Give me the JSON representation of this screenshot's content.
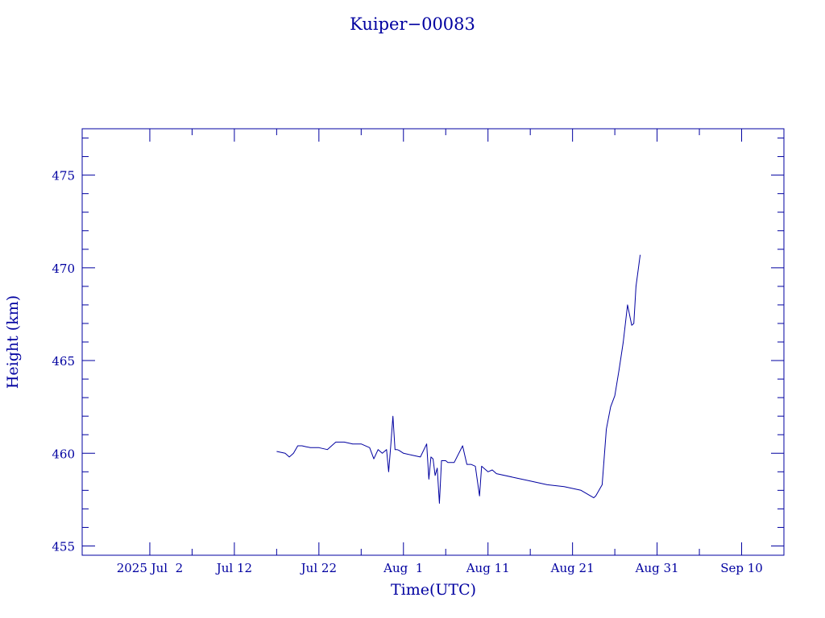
{
  "chart_data": {
    "type": "line",
    "title": "Kuiper−00083",
    "xlabel": "Time(UTC)",
    "ylabel": "Height (km)",
    "x_axis": {
      "type": "date",
      "range": [
        "2025-06-24",
        "2025-09-15"
      ],
      "ticks": [
        {
          "date": "2025-07-02",
          "label": "2025 Jul  2"
        },
        {
          "date": "2025-07-12",
          "label": "Jul 12"
        },
        {
          "date": "2025-07-22",
          "label": "Jul 22"
        },
        {
          "date": "2025-08-01",
          "label": "Aug  1"
        },
        {
          "date": "2025-08-11",
          "label": "Aug 11"
        },
        {
          "date": "2025-08-21",
          "label": "Aug 21"
        },
        {
          "date": "2025-08-31",
          "label": "Aug 31"
        },
        {
          "date": "2025-09-10",
          "label": "Sep 10"
        }
      ]
    },
    "y_axis": {
      "range": [
        454.5,
        477.5
      ],
      "ticks": [
        455,
        460,
        465,
        470,
        475
      ],
      "minor_step": 1
    },
    "colors": {
      "line": "#0000a0",
      "frame": "#0000a0",
      "text": "#0000a0",
      "background": "#ffffff"
    },
    "grid": false,
    "series": [
      {
        "x": [
          "2025-07-17T00:00",
          "2025-07-18T00:00",
          "2025-07-18T12:00",
          "2025-07-19T00:00",
          "2025-07-19T12:00",
          "2025-07-20T00:00",
          "2025-07-20T12:00",
          "2025-07-21T00:00",
          "2025-07-22T00:00",
          "2025-07-23T00:00",
          "2025-07-24T00:00",
          "2025-07-25T00:00",
          "2025-07-26T00:00",
          "2025-07-27T00:00",
          "2025-07-28T00:00",
          "2025-07-28T12:00",
          "2025-07-29T00:00",
          "2025-07-29T12:00",
          "2025-07-30T00:00",
          "2025-07-30T06:00",
          "2025-07-30T12:00",
          "2025-07-30T18:00",
          "2025-07-31T00:00",
          "2025-07-31T06:00",
          "2025-07-31T12:00",
          "2025-08-01T00:00",
          "2025-08-02T00:00",
          "2025-08-03T00:00",
          "2025-08-03T18:00",
          "2025-08-04T00:00",
          "2025-08-04T06:00",
          "2025-08-04T12:00",
          "2025-08-04T18:00",
          "2025-08-05T00:00",
          "2025-08-05T06:00",
          "2025-08-05T12:00",
          "2025-08-05T18:00",
          "2025-08-06T00:00",
          "2025-08-06T06:00",
          "2025-08-07T00:00",
          "2025-08-08T00:00",
          "2025-08-08T12:00",
          "2025-08-09T00:00",
          "2025-08-09T12:00",
          "2025-08-10T00:00",
          "2025-08-10T06:00",
          "2025-08-10T12:00",
          "2025-08-11T00:00",
          "2025-08-11T12:00",
          "2025-08-12T00:00",
          "2025-08-14T00:00",
          "2025-08-16T00:00",
          "2025-08-18T00:00",
          "2025-08-20T00:00",
          "2025-08-22T00:00",
          "2025-08-23T12:00",
          "2025-08-23T18:00",
          "2025-08-24T12:00",
          "2025-08-25T00:00",
          "2025-08-25T12:00",
          "2025-08-26T00:00",
          "2025-08-26T12:00",
          "2025-08-27T00:00",
          "2025-08-27T12:00",
          "2025-08-28T00:00",
          "2025-08-28T06:00",
          "2025-08-28T12:00",
          "2025-08-29T00:00"
        ],
        "y": [
          460.1,
          460.0,
          459.8,
          460.0,
          460.4,
          460.4,
          460.35,
          460.3,
          460.3,
          460.2,
          460.6,
          460.6,
          460.5,
          460.5,
          460.3,
          459.7,
          460.2,
          460.0,
          460.2,
          459.0,
          460.4,
          462.0,
          460.2,
          460.2,
          460.15,
          460.0,
          459.9,
          459.8,
          460.5,
          458.6,
          459.8,
          459.7,
          458.8,
          459.2,
          457.3,
          459.6,
          459.6,
          459.6,
          459.5,
          459.5,
          460.4,
          459.4,
          459.4,
          459.3,
          457.7,
          459.3,
          459.2,
          459.0,
          459.1,
          458.9,
          458.7,
          458.5,
          458.3,
          458.2,
          458.0,
          457.6,
          457.7,
          458.3,
          461.3,
          462.5,
          463.1,
          464.5,
          466.0,
          468.0,
          466.9,
          467.0,
          469.0,
          470.7
        ]
      }
    ]
  }
}
